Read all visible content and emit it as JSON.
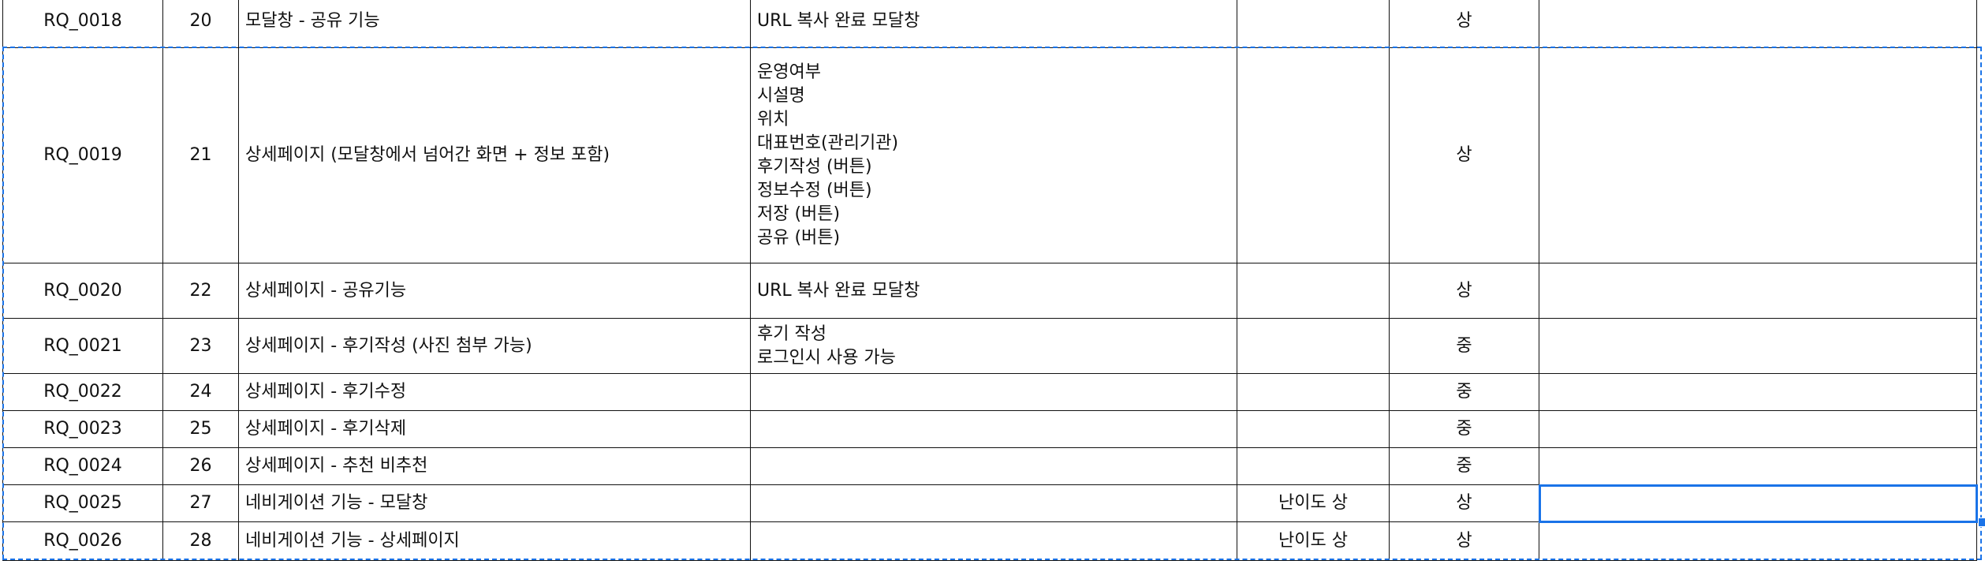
{
  "spreadsheet": {
    "rows": [
      {
        "id": "RQ_0018",
        "num": "20",
        "feature": "모달창 - 공유 기능",
        "desc": [
          "URL 복사 완료 모달창"
        ],
        "difficulty": "",
        "priority": "상",
        "extra": ""
      },
      {
        "id": "RQ_0019",
        "num": "21",
        "feature": "상세페이지 (모달창에서 넘어간 화면  + 정보 포함)",
        "desc": [
          "운영여부",
          "시설명",
          "위치",
          "대표번호(관리기관)",
          "후기작성 (버튼)",
          "정보수정 (버튼)",
          "저장 (버튼)",
          "공유 (버튼)"
        ],
        "difficulty": "",
        "priority": "상",
        "extra": ""
      },
      {
        "id": "RQ_0020",
        "num": "22",
        "feature": "상세페이지 - 공유기능",
        "desc": [
          "URL 복사 완료 모달창"
        ],
        "difficulty": "",
        "priority": "상",
        "extra": ""
      },
      {
        "id": "RQ_0021",
        "num": "23",
        "feature": "상세페이지 - 후기작성 (사진 첨부 가능)",
        "desc": [
          "후기 작성",
          "로그인시 사용 가능"
        ],
        "difficulty": "",
        "priority": "중",
        "extra": ""
      },
      {
        "id": "RQ_0022",
        "num": "24",
        "feature": "상세페이지 - 후기수정",
        "desc": [],
        "difficulty": "",
        "priority": "중",
        "extra": ""
      },
      {
        "id": "RQ_0023",
        "num": "25",
        "feature": "상세페이지 - 후기삭제",
        "desc": [],
        "difficulty": "",
        "priority": "중",
        "extra": ""
      },
      {
        "id": "RQ_0024",
        "num": "26",
        "feature": "상세페이지 - 추천 비추천",
        "desc": [],
        "difficulty": "",
        "priority": "중",
        "extra": ""
      },
      {
        "id": "RQ_0025",
        "num": "27",
        "feature": "네비게이션 기능 - 모달창",
        "desc": [],
        "difficulty": "난이도 상",
        "priority": "상",
        "extra": ""
      },
      {
        "id": "RQ_0026",
        "num": "28",
        "feature": "네비게이션 기능 - 상세페이지",
        "desc": [],
        "difficulty": "난이도 상",
        "priority": "상",
        "extra": ""
      }
    ]
  },
  "colors": {
    "grid_line": "#111111",
    "selection": "#1a73e8",
    "background": "#ffffff"
  }
}
